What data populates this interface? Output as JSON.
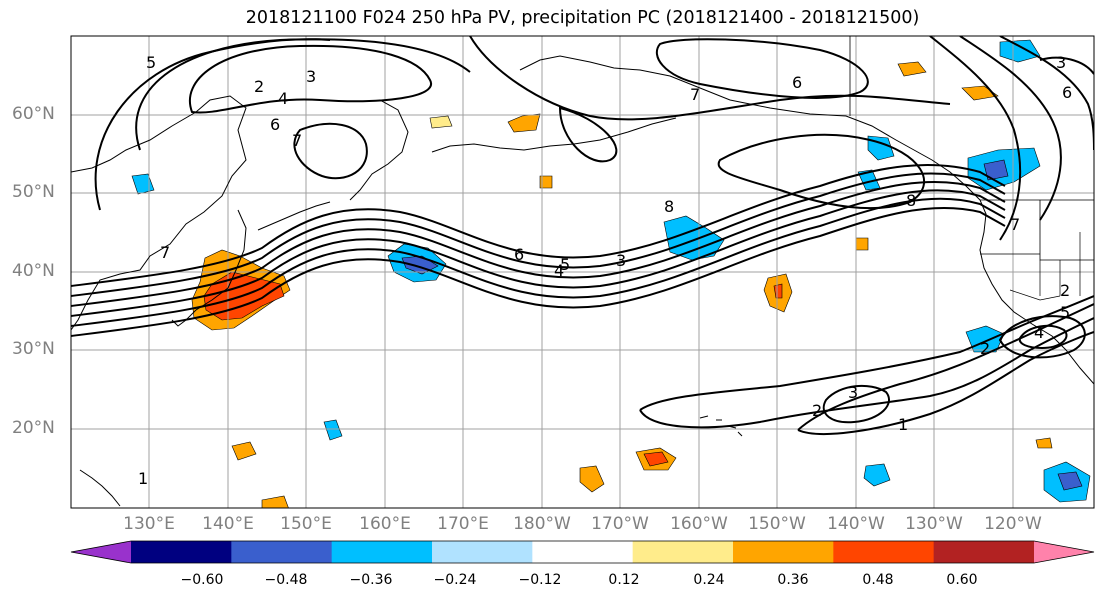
{
  "title": "2018121100 F024 250 hPa PV, precipitation PC (2018121400 - 2018121500)",
  "map": {
    "lat_labels": [
      "60°N",
      "50°N",
      "40°N",
      "30°N",
      "20°N"
    ],
    "lon_labels": [
      "130°E",
      "140°E",
      "150°E",
      "160°E",
      "170°E",
      "180°W",
      "170°W",
      "160°W",
      "150°W",
      "140°W",
      "130°W",
      "120°W"
    ],
    "contour_labels": [
      "5",
      "2",
      "3",
      "4",
      "6",
      "7",
      "6",
      "7",
      "3",
      "6",
      "5",
      "4",
      "3",
      "8",
      "6",
      "8",
      "3",
      "2",
      "1",
      "2",
      "4",
      "5",
      "2",
      "7",
      "3",
      "2",
      "7",
      "1"
    ]
  },
  "colorbar": {
    "levels": [
      -0.6,
      -0.48,
      -0.36,
      -0.24,
      -0.12,
      0.12,
      0.24,
      0.36,
      0.48,
      0.6
    ],
    "tick_labels": [
      "−0.60",
      "−0.48",
      "−0.36",
      "−0.24",
      "−0.12",
      "0.12",
      "0.24",
      "0.36",
      "0.48",
      "0.60"
    ],
    "colors": [
      "#9932cc",
      "#000080",
      "#3a5fcd",
      "#00bfff",
      "#b0e2ff",
      "#ffffff",
      "#ffec8b",
      "#ffa500",
      "#ff4500",
      "#b22222",
      "#ff82ab"
    ]
  }
}
